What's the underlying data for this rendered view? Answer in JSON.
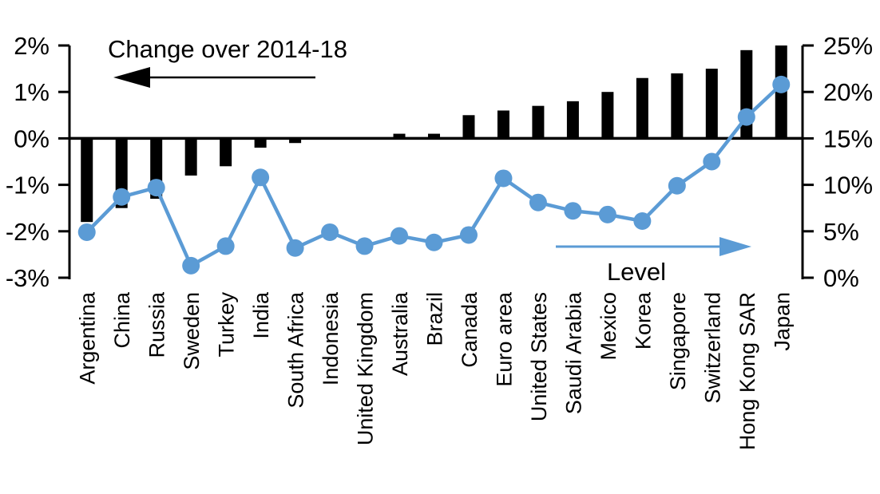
{
  "chart_data": {
    "type": "combo",
    "title": "",
    "categories": [
      "Argentina",
      "China",
      "Russia",
      "Sweden",
      "Turkey",
      "India",
      "South Africa",
      "Indonesia",
      "United Kingdom",
      "Australia",
      "Brazil",
      "Canada",
      "Euro area",
      "United States",
      "Saudi Arabia",
      "Mexico",
      "Korea",
      "Singapore",
      "Switzerland",
      "Hong Kong SAR",
      "Japan"
    ],
    "series": [
      {
        "name": "Change over 2014-18",
        "type": "bar",
        "axis": "left",
        "unit": "%",
        "color": "#000000",
        "values": [
          -1.8,
          -1.5,
          -1.3,
          -0.8,
          -0.6,
          -0.2,
          -0.1,
          0,
          0,
          0.1,
          0.1,
          0.5,
          0.6,
          0.7,
          0.8,
          1.0,
          1.3,
          1.4,
          1.5,
          1.9,
          2.0
        ]
      },
      {
        "name": "Level",
        "type": "line",
        "axis": "right",
        "unit": "%",
        "color": "#5B9BD5",
        "values": [
          4.9,
          8.7,
          9.7,
          1.3,
          3.4,
          10.8,
          3.2,
          4.9,
          3.4,
          4.5,
          3.8,
          4.6,
          10.7,
          8.1,
          7.2,
          6.8,
          6.1,
          9.9,
          12.5,
          17.3,
          20.8
        ]
      }
    ],
    "left_axis": {
      "range": [
        -3,
        2
      ],
      "ticks": [
        2,
        1,
        0,
        -1,
        -2,
        -3
      ],
      "labels": [
        "2%",
        "1%",
        "0%",
        "-1%",
        "-2%",
        "-3%"
      ]
    },
    "right_axis": {
      "range": [
        0,
        25
      ],
      "ticks": [
        25,
        20,
        15,
        10,
        5,
        0
      ],
      "labels": [
        "25%",
        "20%",
        "15%",
        "10%",
        "5%",
        "0%"
      ]
    },
    "annotations": {
      "bar_series_label": "Change over 2014-18",
      "bar_arrow_direction": "left",
      "line_series_label": "Level",
      "line_arrow_direction": "right"
    },
    "grid": false,
    "legend_position": "in-plot-annotations",
    "background": "#ffffff"
  }
}
